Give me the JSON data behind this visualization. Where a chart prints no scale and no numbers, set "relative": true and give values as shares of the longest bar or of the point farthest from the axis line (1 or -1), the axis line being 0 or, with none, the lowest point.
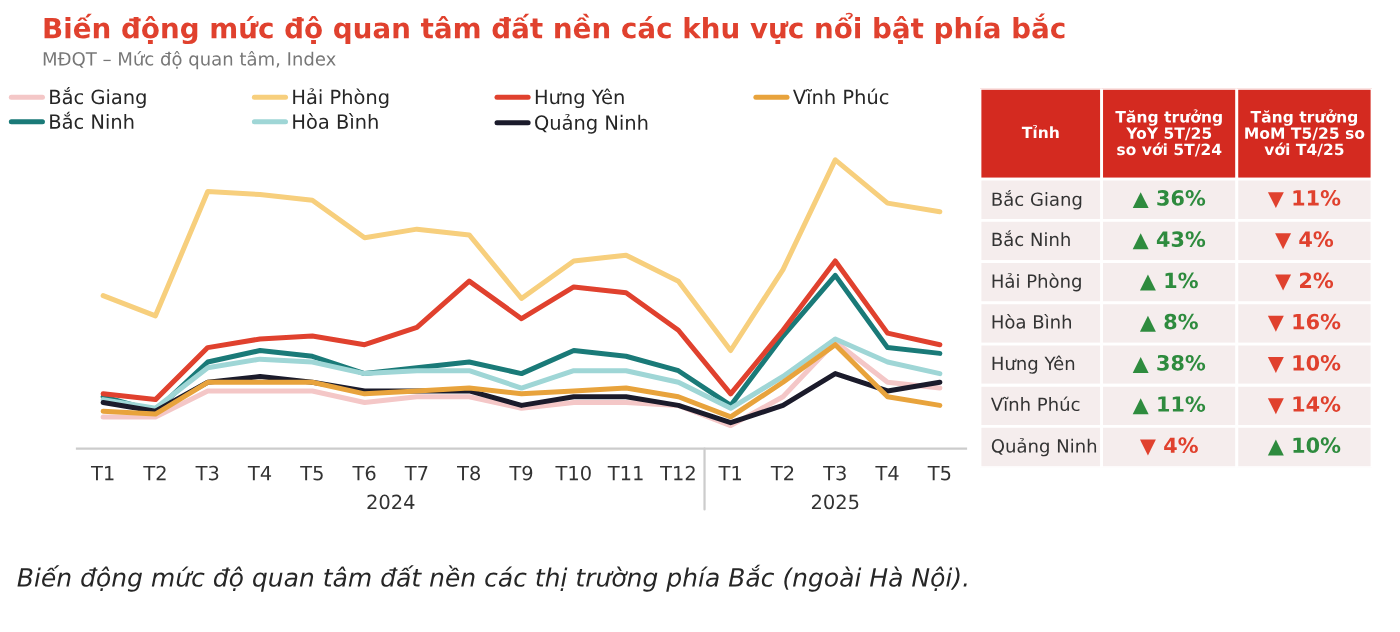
{
  "chart_data": [
    {
      "type": "line",
      "title": "Biến động mức độ quan tâm đất nền các khu vực nổi bật phía bắc",
      "subtitle": "MĐQT – Mức độ quan tâm, Index",
      "relative": true,
      "legend": "top",
      "marker": "none",
      "line_style": "solid",
      "grid": false,
      "categories": [
        "T1",
        "T2",
        "T3",
        "T4",
        "T5",
        "T6",
        "T7",
        "T8",
        "T9",
        "T10",
        "T11",
        "T12",
        "T1",
        "T2",
        "T3",
        "T4",
        "T5"
      ],
      "annotations": [
        "2024",
        "2025",
        "Biến động mức độ quan tâm đất nền các thị trường phía Bắc (ngoài Hà Nội)."
      ],
      "series": [
        {
          "name": "Bắc Giang",
          "color": "#f4c7c7",
          "values": [
            0.11,
            0.11,
            0.2,
            0.2,
            0.2,
            0.16,
            0.18,
            0.18,
            0.14,
            0.16,
            0.16,
            0.15,
            0.08,
            0.18,
            0.37,
            0.23,
            0.21
          ]
        },
        {
          "name": "Bắc Ninh",
          "color": "#1a7a78",
          "values": [
            0.18,
            0.13,
            0.3,
            0.34,
            0.32,
            0.26,
            0.28,
            0.3,
            0.26,
            0.34,
            0.32,
            0.27,
            0.15,
            0.39,
            0.6,
            0.35,
            0.33
          ]
        },
        {
          "name": "Hải Phòng",
          "color": "#f7cf7d",
          "values": [
            0.53,
            0.46,
            0.89,
            0.88,
            0.86,
            0.73,
            0.76,
            0.74,
            0.52,
            0.65,
            0.67,
            0.58,
            0.34,
            0.62,
            1.0,
            0.85,
            0.82
          ]
        },
        {
          "name": "Hòa Bình",
          "color": "#9fd6d6",
          "values": [
            0.17,
            0.14,
            0.28,
            0.31,
            0.3,
            0.26,
            0.27,
            0.27,
            0.21,
            0.27,
            0.27,
            0.23,
            0.14,
            0.25,
            0.38,
            0.3,
            0.26
          ]
        },
        {
          "name": "Hưng Yên",
          "color": "#e0412e",
          "values": [
            0.19,
            0.17,
            0.35,
            0.38,
            0.39,
            0.36,
            0.42,
            0.58,
            0.45,
            0.56,
            0.54,
            0.41,
            0.19,
            0.41,
            0.65,
            0.4,
            0.36
          ]
        },
        {
          "name": "Quảng Ninh",
          "color": "#1b1b2b",
          "values": [
            0.16,
            0.13,
            0.23,
            0.25,
            0.23,
            0.2,
            0.2,
            0.2,
            0.15,
            0.18,
            0.18,
            0.15,
            0.09,
            0.15,
            0.26,
            0.2,
            0.23
          ]
        },
        {
          "name": "Vĩnh Phúc",
          "color": "#e8a33c",
          "values": [
            0.13,
            0.12,
            0.23,
            0.23,
            0.23,
            0.19,
            0.2,
            0.21,
            0.19,
            0.2,
            0.21,
            0.18,
            0.11,
            0.23,
            0.36,
            0.18,
            0.15
          ]
        }
      ]
    },
    {
      "type": "other",
      "ylabel": "Tỉnh",
      "categories": [
        "Tăng trưởng\nYoY 5T/25\nso với 5T/24",
        "Tăng trưởng\nMoM T5/25 so\nvới T4/25"
      ],
      "y_categories": [
        "Bắc Giang",
        "Bắc Ninh",
        "Hải Phòng",
        "Hòa Bình",
        "Hưng Yên",
        "Vĩnh Phúc",
        "Quảng Ninh"
      ],
      "colors": [
        [
          "#2e8b3e",
          "#e0412e"
        ],
        [
          "#2e8b3e",
          "#e0412e"
        ],
        [
          "#2e8b3e",
          "#e0412e"
        ],
        [
          "#2e8b3e",
          "#e0412e"
        ],
        [
          "#2e8b3e",
          "#e0412e"
        ],
        [
          "#2e8b3e",
          "#e0412e"
        ],
        [
          "#e0412e",
          "#2e8b3e"
        ]
      ],
      "cell_labels": [
        [
          "▲ 36%",
          "▼ 11%"
        ],
        [
          "▲ 43%",
          "▼ 4%"
        ],
        [
          "▲ 1%",
          "▼ 2%"
        ],
        [
          "▲ 8%",
          "▼ 16%"
        ],
        [
          "▲ 38%",
          "▼ 10%"
        ],
        [
          "▲ 11%",
          "▼ 14%"
        ],
        [
          "▼ 4%",
          "▲ 10%"
        ]
      ]
    }
  ]
}
